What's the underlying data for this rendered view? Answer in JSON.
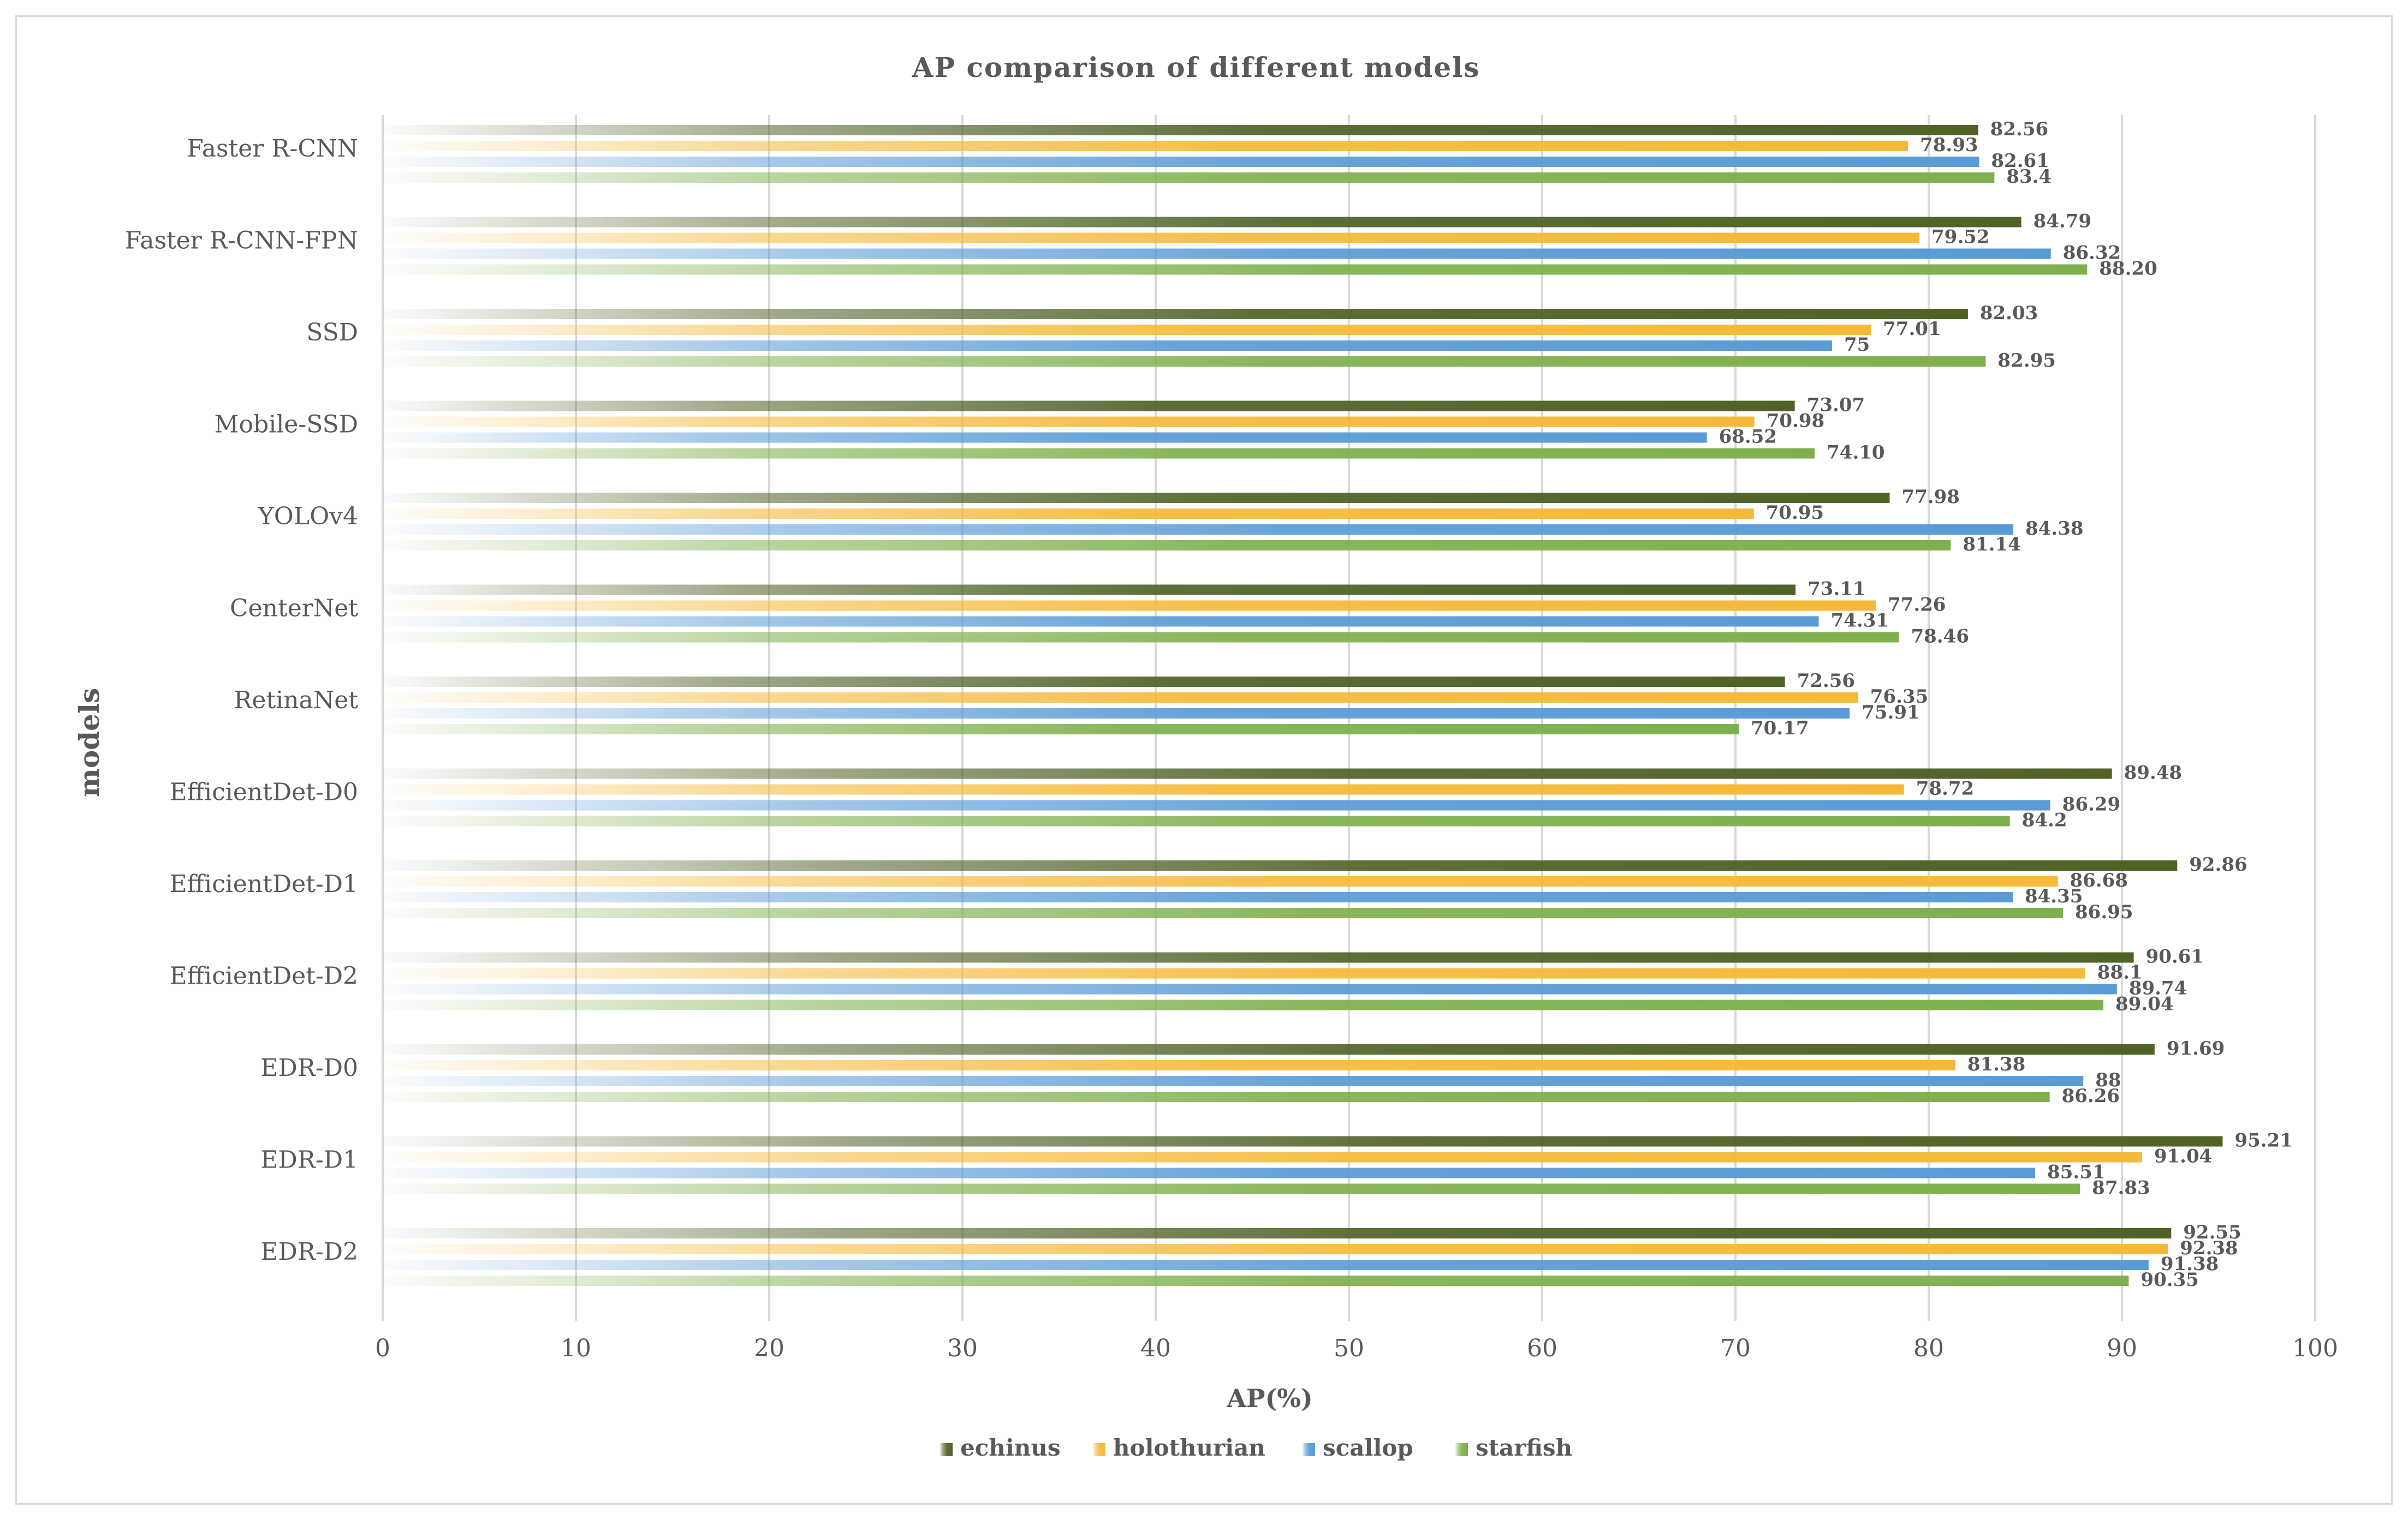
{
  "chart_data": {
    "type": "bar",
    "orientation": "horizontal",
    "title": "AP comparison of different models",
    "xlabel": "AP(%)",
    "ylabel": "models",
    "xlim": [
      0,
      100
    ],
    "xticks": [
      0,
      10,
      20,
      30,
      40,
      50,
      60,
      70,
      80,
      90,
      100
    ],
    "grid": true,
    "legend_position": "bottom",
    "categories": [
      "Faster R-CNN",
      "Faster R-CNN-FPN",
      "SSD",
      "Mobile-SSD",
      "YOLOv4",
      "CenterNet",
      "RetinaNet",
      "EfficientDet-D0",
      "EfficientDet-D1",
      "EfficientDet-D2",
      "EDR-D0",
      "EDR-D1",
      "EDR-D2"
    ],
    "series": [
      {
        "name": "echinus",
        "color": "#4f6228",
        "values": [
          82.56,
          84.79,
          82.03,
          73.07,
          77.98,
          73.11,
          72.56,
          89.48,
          92.86,
          90.61,
          91.69,
          95.21,
          92.55
        ],
        "labels": [
          "82.56",
          "84.79",
          "82.03",
          "73.07",
          "77.98",
          "73.11",
          "72.56",
          "89.48",
          "92.86",
          "90.61",
          "91.69",
          "95.21",
          "92.55"
        ]
      },
      {
        "name": "holothurian",
        "color": "#f4b93a",
        "values": [
          78.93,
          79.52,
          77.01,
          70.98,
          70.95,
          77.26,
          76.35,
          78.72,
          86.68,
          88.1,
          81.38,
          91.04,
          92.38
        ],
        "labels": [
          "78.93",
          "79.52",
          "77.01",
          "70.98",
          "70.95",
          "77.26",
          "76.35",
          "78.72",
          "86.68",
          "88.1",
          "81.38",
          "91.04",
          "92.38"
        ]
      },
      {
        "name": "scallop",
        "color": "#5b9bd5",
        "values": [
          82.61,
          86.32,
          75,
          68.52,
          84.38,
          74.31,
          75.91,
          86.29,
          84.35,
          89.74,
          88,
          85.51,
          91.38
        ],
        "labels": [
          "82.61",
          "86.32",
          "75",
          "68.52",
          "84.38",
          "74.31",
          "75.91",
          "86.29",
          "84.35",
          "89.74",
          "88",
          "85.51",
          "91.38"
        ]
      },
      {
        "name": "starfish",
        "color": "#7fb04f",
        "values": [
          83.4,
          88.2,
          82.95,
          74.1,
          81.14,
          78.46,
          70.17,
          84.2,
          86.95,
          89.04,
          86.26,
          87.83,
          90.35
        ],
        "labels": [
          "83.4",
          "88.20",
          "82.95",
          "74.10",
          "81.14",
          "78.46",
          "70.17",
          "84.2",
          "86.95",
          "89.04",
          "86.26",
          "87.83",
          "90.35"
        ]
      }
    ]
  }
}
